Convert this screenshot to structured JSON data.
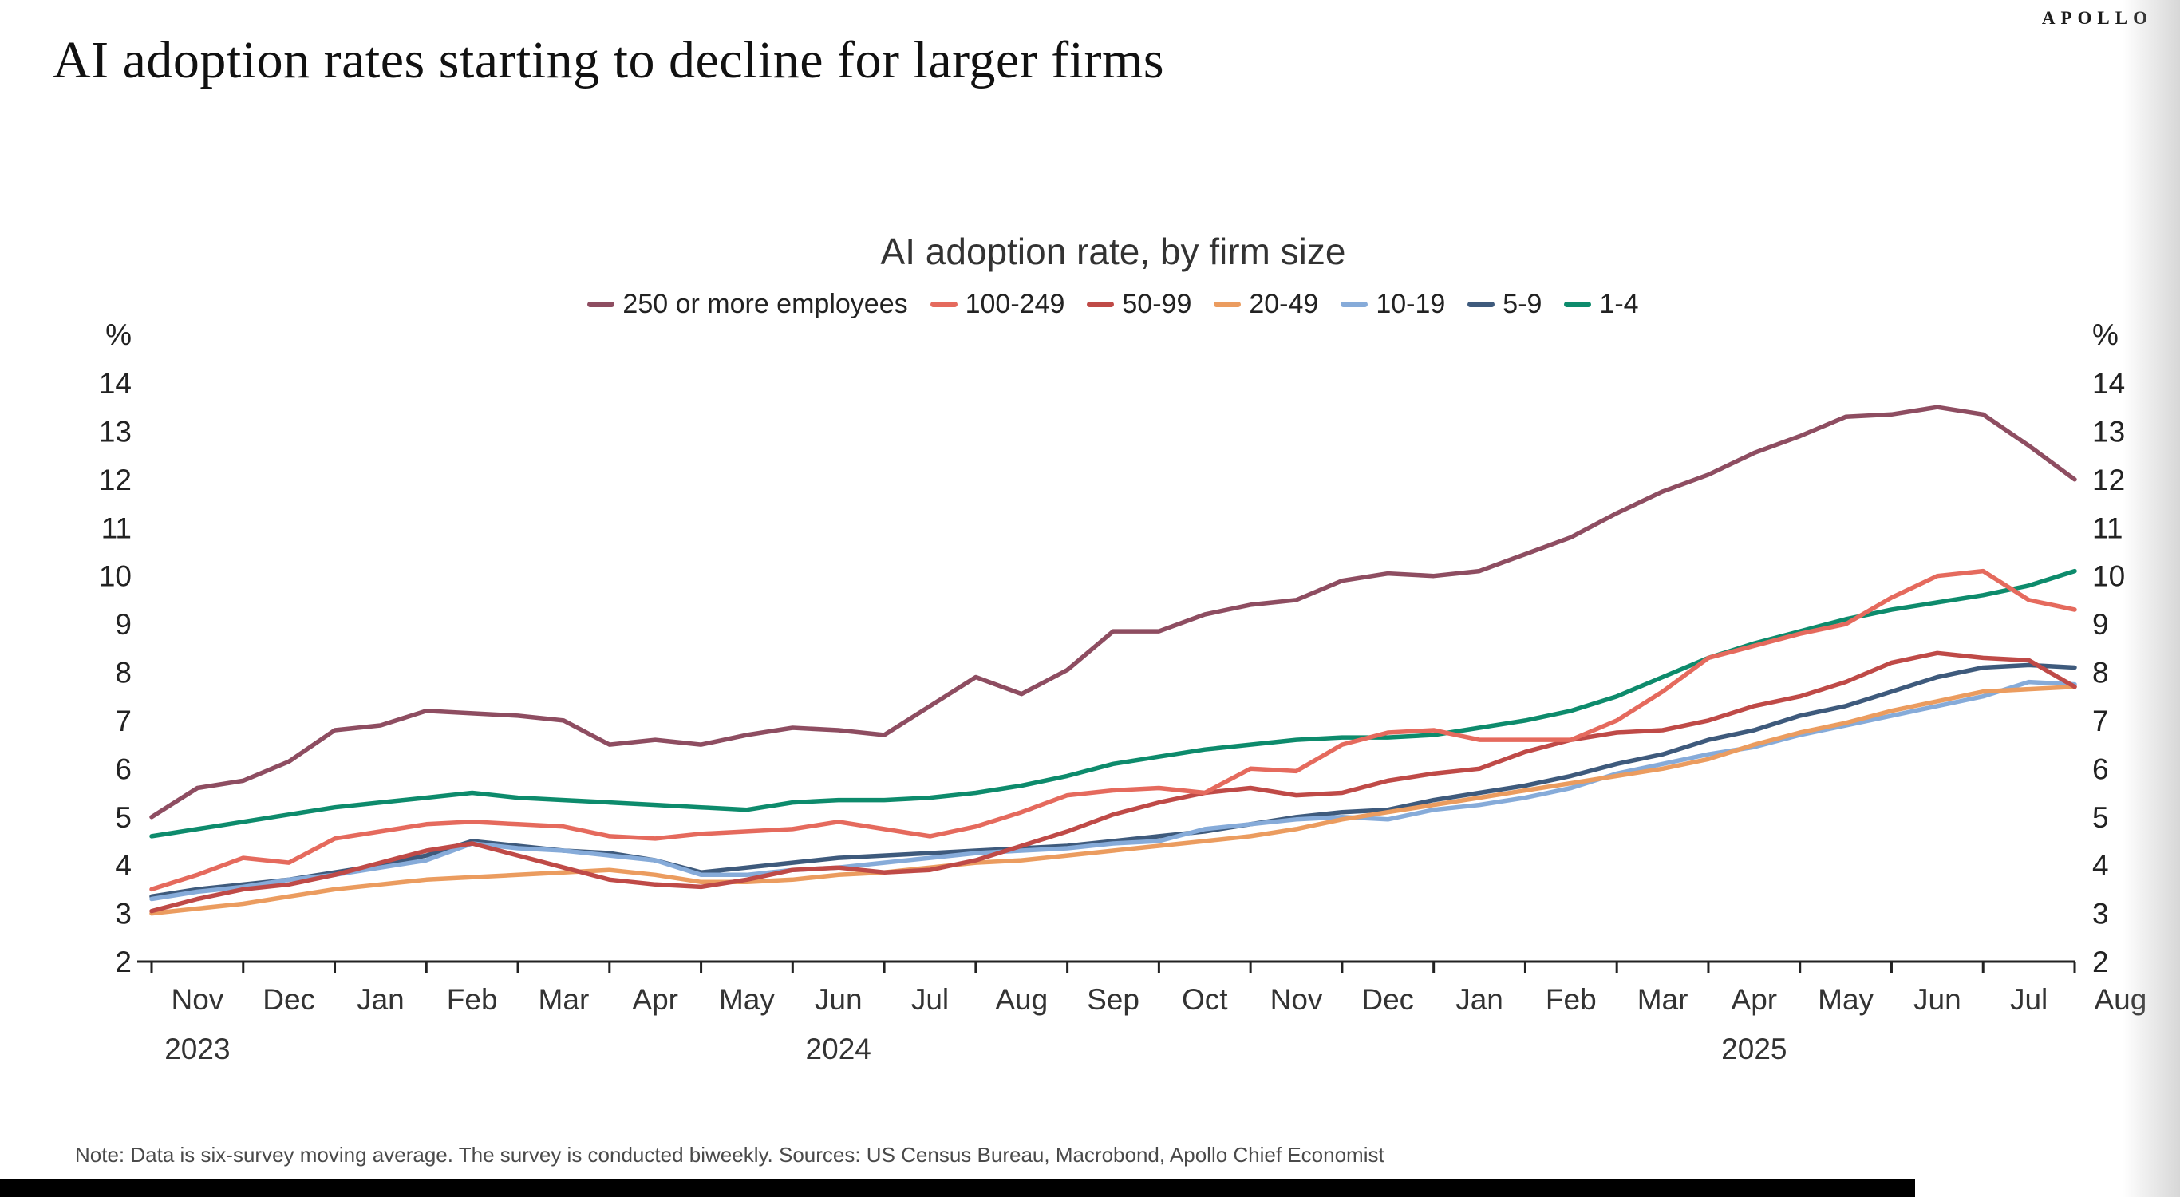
{
  "brand": {
    "logo": "APOLLO"
  },
  "headline": "AI adoption rates starting to decline for larger firms",
  "note": "Note: Data is six-survey moving average. The survey is conducted biweekly. Sources: US Census Bureau, Macrobond, Apollo Chief Economist",
  "chart_data": {
    "type": "line",
    "title": "AI adoption rate, by firm size",
    "y_unit": "%",
    "ylim": [
      2,
      14
    ],
    "y_ticks": [
      2,
      3,
      4,
      5,
      6,
      7,
      8,
      9,
      10,
      11,
      12,
      13,
      14
    ],
    "grid": false,
    "legend_position": "top",
    "frequency": "biweekly",
    "x_months": [
      "Nov",
      "Dec",
      "Jan",
      "Feb",
      "Mar",
      "Apr",
      "May",
      "Jun",
      "Jul",
      "Aug",
      "Sep",
      "Oct",
      "Nov",
      "Dec",
      "Jan",
      "Feb",
      "Mar",
      "Apr",
      "May",
      "Jun",
      "Jul",
      "Aug"
    ],
    "x_years": [
      {
        "label": "2023",
        "month_index": 0
      },
      {
        "label": "2024",
        "month_index": 7
      },
      {
        "label": "2025",
        "month_index": 17
      }
    ],
    "series": [
      {
        "name": "250 or more employees",
        "color": "#8e4d61",
        "values": [
          5.0,
          5.6,
          5.75,
          6.15,
          6.8,
          6.9,
          7.2,
          7.15,
          7.1,
          7.0,
          6.5,
          6.6,
          6.5,
          6.7,
          6.85,
          6.8,
          6.7,
          7.3,
          7.9,
          7.55,
          8.05,
          8.85,
          8.85,
          9.2,
          9.4,
          9.5,
          9.9,
          10.05,
          10.0,
          10.1,
          10.45,
          10.8,
          11.3,
          11.75,
          12.1,
          12.55,
          12.9,
          13.3,
          13.35,
          13.5,
          13.35,
          12.7,
          12.0
        ]
      },
      {
        "name": "100-249",
        "color": "#e56a5d",
        "values": [
          3.5,
          3.8,
          4.15,
          4.05,
          4.55,
          4.7,
          4.85,
          4.9,
          4.85,
          4.8,
          4.6,
          4.55,
          4.65,
          4.7,
          4.75,
          4.9,
          4.75,
          4.6,
          4.8,
          5.1,
          5.45,
          5.55,
          5.6,
          5.5,
          6.0,
          5.95,
          6.5,
          6.75,
          6.8,
          6.6,
          6.6,
          6.6,
          7.0,
          7.6,
          8.3,
          8.55,
          8.8,
          9.0,
          9.55,
          10.0,
          10.1,
          9.5,
          9.3
        ]
      },
      {
        "name": "50-99",
        "color": "#bf4a47",
        "values": [
          3.05,
          3.3,
          3.5,
          3.6,
          3.8,
          4.05,
          4.3,
          4.45,
          4.2,
          3.95,
          3.7,
          3.6,
          3.55,
          3.7,
          3.9,
          3.95,
          3.85,
          3.9,
          4.1,
          4.4,
          4.7,
          5.05,
          5.3,
          5.5,
          5.6,
          5.45,
          5.5,
          5.75,
          5.9,
          6.0,
          6.35,
          6.6,
          6.75,
          6.8,
          7.0,
          7.3,
          7.5,
          7.8,
          8.2,
          8.4,
          8.3,
          8.25,
          7.7
        ]
      },
      {
        "name": "20-49",
        "color": "#eb9c5f",
        "values": [
          3.0,
          3.1,
          3.2,
          3.35,
          3.5,
          3.6,
          3.7,
          3.75,
          3.8,
          3.85,
          3.9,
          3.8,
          3.65,
          3.65,
          3.7,
          3.8,
          3.85,
          3.95,
          4.05,
          4.1,
          4.2,
          4.3,
          4.4,
          4.5,
          4.6,
          4.75,
          4.95,
          5.1,
          5.25,
          5.4,
          5.55,
          5.7,
          5.85,
          6.0,
          6.2,
          6.5,
          6.75,
          6.95,
          7.2,
          7.4,
          7.6,
          7.65,
          7.7
        ]
      },
      {
        "name": "10-19",
        "color": "#86abd9",
        "values": [
          3.3,
          3.45,
          3.55,
          3.7,
          3.8,
          3.95,
          4.1,
          4.45,
          4.35,
          4.3,
          4.2,
          4.1,
          3.8,
          3.8,
          3.9,
          3.95,
          4.05,
          4.15,
          4.25,
          4.3,
          4.35,
          4.45,
          4.5,
          4.75,
          4.85,
          4.95,
          5.0,
          4.95,
          5.15,
          5.25,
          5.4,
          5.6,
          5.9,
          6.1,
          6.3,
          6.45,
          6.7,
          6.9,
          7.1,
          7.3,
          7.5,
          7.8,
          7.75
        ]
      },
      {
        "name": "5-9",
        "color": "#3e5a7c",
        "values": [
          3.35,
          3.5,
          3.6,
          3.7,
          3.85,
          4.0,
          4.2,
          4.5,
          4.4,
          4.3,
          4.25,
          4.1,
          3.85,
          3.95,
          4.05,
          4.15,
          4.2,
          4.25,
          4.3,
          4.35,
          4.4,
          4.5,
          4.6,
          4.7,
          4.85,
          5.0,
          5.1,
          5.15,
          5.35,
          5.5,
          5.65,
          5.85,
          6.1,
          6.3,
          6.6,
          6.8,
          7.1,
          7.3,
          7.6,
          7.9,
          8.1,
          8.15,
          8.1
        ]
      },
      {
        "name": "1-4",
        "color": "#0d8b6c",
        "values": [
          4.6,
          4.75,
          4.9,
          5.05,
          5.2,
          5.3,
          5.4,
          5.5,
          5.4,
          5.35,
          5.3,
          5.25,
          5.2,
          5.15,
          5.3,
          5.35,
          5.35,
          5.4,
          5.5,
          5.65,
          5.85,
          6.1,
          6.25,
          6.4,
          6.5,
          6.6,
          6.65,
          6.65,
          6.7,
          6.85,
          7.0,
          7.2,
          7.5,
          7.9,
          8.3,
          8.6,
          8.85,
          9.1,
          9.3,
          9.45,
          9.6,
          9.8,
          10.1
        ]
      }
    ]
  }
}
